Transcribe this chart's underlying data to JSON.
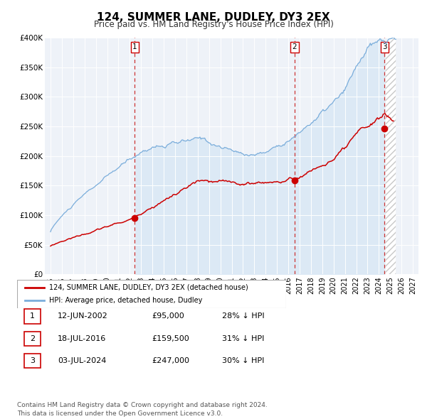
{
  "title": "124, SUMMER LANE, DUDLEY, DY3 2EX",
  "subtitle": "Price paid vs. HM Land Registry's House Price Index (HPI)",
  "title_fontsize": 11,
  "subtitle_fontsize": 8.5,
  "xlim": [
    1994.5,
    2027.5
  ],
  "ylim": [
    0,
    400000
  ],
  "yticks": [
    0,
    50000,
    100000,
    150000,
    200000,
    250000,
    300000,
    350000,
    400000
  ],
  "ytick_labels": [
    "£0",
    "£50K",
    "£100K",
    "£150K",
    "£200K",
    "£250K",
    "£300K",
    "£350K",
    "£400K"
  ],
  "xticks": [
    1995,
    1996,
    1997,
    1998,
    1999,
    2000,
    2001,
    2002,
    2003,
    2004,
    2005,
    2006,
    2007,
    2008,
    2009,
    2010,
    2011,
    2012,
    2013,
    2014,
    2015,
    2016,
    2017,
    2018,
    2019,
    2020,
    2021,
    2022,
    2023,
    2024,
    2025,
    2026,
    2027
  ],
  "red_line_color": "#cc0000",
  "blue_line_color": "#7aaddb",
  "blue_fill_color": "#dce9f5",
  "vline_color": "#cc3333",
  "marker_color": "#cc0000",
  "sale_dates": [
    2002.45,
    2016.54,
    2024.51
  ],
  "sale_prices": [
    95000,
    159500,
    247000
  ],
  "sale_labels": [
    "1",
    "2",
    "3"
  ],
  "legend_red_label": "124, SUMMER LANE, DUDLEY, DY3 2EX (detached house)",
  "legend_blue_label": "HPI: Average price, detached house, Dudley",
  "table_entries": [
    [
      "1",
      "12-JUN-2002",
      "£95,000",
      "28% ↓ HPI"
    ],
    [
      "2",
      "18-JUL-2016",
      "£159,500",
      "31% ↓ HPI"
    ],
    [
      "3",
      "03-JUL-2024",
      "£247,000",
      "30% ↓ HPI"
    ]
  ],
  "footer_text": "Contains HM Land Registry data © Crown copyright and database right 2024.\nThis data is licensed under the Open Government Licence v3.0.",
  "background_color": "#ffffff",
  "plot_bg_color": "#eef2f8"
}
